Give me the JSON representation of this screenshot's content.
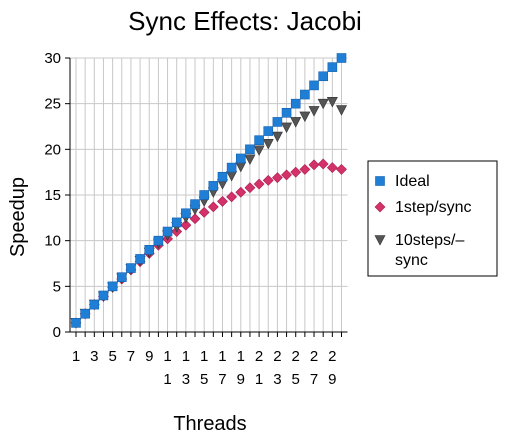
{
  "chart_data": {
    "type": "scatter",
    "title": "Sync Effects: Jacobi",
    "xlabel": "Threads",
    "ylabel": "Speedup",
    "x": [
      1,
      2,
      3,
      4,
      5,
      6,
      7,
      8,
      9,
      10,
      11,
      12,
      13,
      14,
      15,
      16,
      17,
      18,
      19,
      20,
      21,
      22,
      23,
      24,
      25,
      26,
      27,
      28,
      29,
      30
    ],
    "x_tick_labels": [
      "1",
      "3",
      "5",
      "7",
      "9",
      "11",
      "13",
      "15",
      "17",
      "19",
      "21",
      "23",
      "25",
      "27",
      "29"
    ],
    "ylim": [
      0,
      30
    ],
    "y_ticks": [
      0,
      5,
      10,
      15,
      20,
      25,
      30
    ],
    "grid": "horizontal and vertical",
    "legend_position": "right",
    "series": [
      {
        "name": "Ideal",
        "marker": "square",
        "color": "#1f7fd6",
        "values": [
          1,
          2,
          3,
          4,
          5,
          6,
          7,
          8,
          9,
          10,
          11,
          12,
          13,
          14,
          15,
          16,
          17,
          18,
          19,
          20,
          21,
          22,
          23,
          24,
          25,
          26,
          27,
          28,
          29,
          30
        ]
      },
      {
        "name": "1step/sync",
        "marker": "diamond",
        "color": "#d4306a",
        "values": [
          1,
          2,
          3,
          3.9,
          4.9,
          5.8,
          6.8,
          7.7,
          8.6,
          9.5,
          10.2,
          11.0,
          11.7,
          12.4,
          13.1,
          13.7,
          14.3,
          14.8,
          15.3,
          15.8,
          16.2,
          16.6,
          16.9,
          17.2,
          17.5,
          17.8,
          18.3,
          18.4,
          18.0,
          17.8
        ]
      },
      {
        "name": "10steps/–sync",
        "marker": "triangle-down",
        "color": "#555555",
        "values": [
          1,
          2,
          3,
          3.9,
          4.9,
          5.9,
          6.9,
          7.8,
          8.7,
          9.7,
          10.6,
          11.5,
          12.5,
          13.4,
          14.3,
          15.3,
          16.2,
          17.1,
          18.1,
          18.9,
          19.9,
          20.6,
          21.4,
          22.4,
          23.0,
          23.6,
          24.2,
          25.0,
          25.2,
          24.3
        ]
      }
    ]
  }
}
